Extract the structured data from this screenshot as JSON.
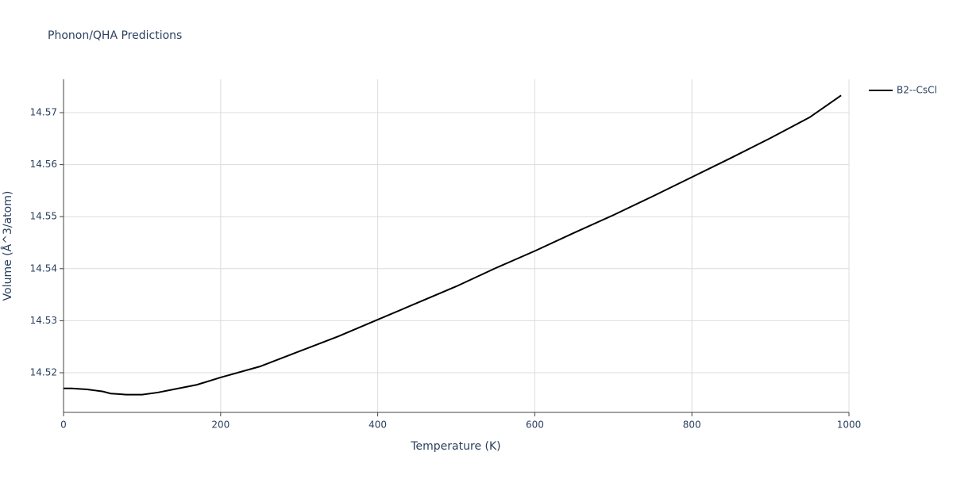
{
  "chart_data": {
    "type": "line",
    "title": "Phonon/QHA Predictions",
    "x_label": "Temperature (K)",
    "y_label": "Volume (Å^3/atom)",
    "x": [
      0,
      10,
      20,
      30,
      40,
      50,
      60,
      70,
      80,
      90,
      100,
      120,
      140,
      170,
      200,
      250,
      300,
      350,
      400,
      450,
      500,
      550,
      600,
      650,
      700,
      750,
      800,
      850,
      900,
      950,
      990
    ],
    "series": [
      {
        "name": "B2--CsCl",
        "color": "#000000",
        "values": [
          14.517,
          14.517,
          14.5169,
          14.5168,
          14.5166,
          14.5164,
          14.516,
          14.5159,
          14.5158,
          14.5158,
          14.5158,
          14.5162,
          14.5168,
          14.5177,
          14.5191,
          14.5212,
          14.5241,
          14.527,
          14.5302,
          14.5334,
          14.5366,
          14.5401,
          14.5434,
          14.5469,
          14.5503,
          14.5539,
          14.5576,
          14.5613,
          14.5651,
          14.5691,
          14.5733
        ]
      }
    ],
    "xlim": [
      0,
      1000
    ],
    "xticks": [
      0,
      200,
      400,
      600,
      800,
      1000
    ],
    "ylim": [
      14.51238,
      14.5764
    ],
    "yticks": [
      14.52,
      14.53,
      14.54,
      14.55,
      14.56,
      14.57
    ],
    "grid": true,
    "legend": "top-right"
  }
}
